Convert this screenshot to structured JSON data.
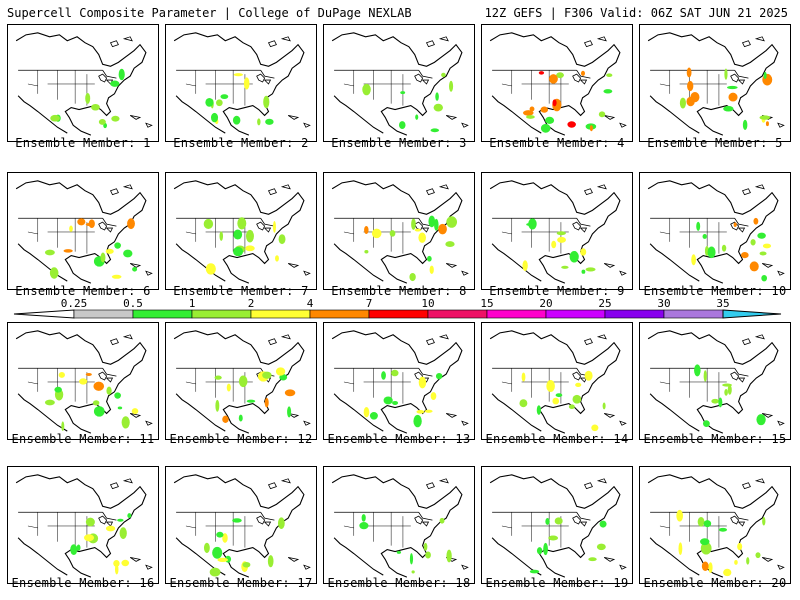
{
  "header": {
    "left_title": "Supercell Composite Parameter | College of DuPage NEXLAB",
    "right_title": "12Z GEFS | F306 Valid: 06Z SAT JUN 21 2025"
  },
  "colorbar": {
    "thresholds": [
      "0.25",
      "0.5",
      "1",
      "2",
      "4",
      "7",
      "10",
      "15",
      "20",
      "25",
      "30",
      "35"
    ],
    "colors": [
      "#c8c8c8",
      "#33ee33",
      "#99ee33",
      "#ffff33",
      "#ff8800",
      "#ff0000",
      "#ee1166",
      "#ff00cc",
      "#cc00ff",
      "#8800ee",
      "#aa77dd",
      "#33ccee"
    ]
  },
  "panels": [
    {
      "label": "Ensemble Member: 1",
      "intensity": 1
    },
    {
      "label": "Ensemble Member: 2",
      "intensity": 2
    },
    {
      "label": "Ensemble Member: 3",
      "intensity": 1
    },
    {
      "label": "Ensemble Member: 4",
      "intensity": 4
    },
    {
      "label": "Ensemble Member: 5",
      "intensity": 3
    },
    {
      "label": "Ensemble Member: 6",
      "intensity": 3
    },
    {
      "label": "Ensemble Member: 7",
      "intensity": 2
    },
    {
      "label": "Ensemble Member: 8",
      "intensity": 3
    },
    {
      "label": "Ensemble Member: 9",
      "intensity": 2
    },
    {
      "label": "Ensemble Member: 10",
      "intensity": 3
    },
    {
      "label": "Ensemble Member: 11",
      "intensity": 3
    },
    {
      "label": "Ensemble Member: 12",
      "intensity": 3
    },
    {
      "label": "Ensemble Member: 13",
      "intensity": 2
    },
    {
      "label": "Ensemble Member: 14",
      "intensity": 2
    },
    {
      "label": "Ensemble Member: 15",
      "intensity": 1
    },
    {
      "label": "Ensemble Member: 16",
      "intensity": 2
    },
    {
      "label": "Ensemble Member: 17",
      "intensity": 2
    },
    {
      "label": "Ensemble Member: 18",
      "intensity": 1
    },
    {
      "label": "Ensemble Member: 19",
      "intensity": 1
    },
    {
      "label": "Ensemble Member: 20",
      "intensity": 3
    }
  ]
}
